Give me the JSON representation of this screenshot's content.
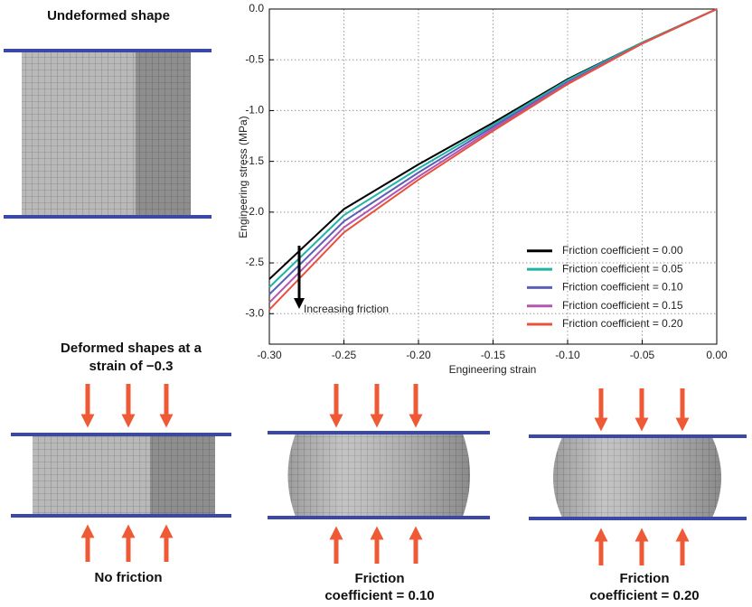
{
  "chart_data": {
    "type": "line",
    "x_label": "Engineering strain",
    "y_label": "Engineering stress (MPa)",
    "x": [
      -0.3,
      -0.25,
      -0.2,
      -0.15,
      -0.1,
      -0.05,
      0.0
    ],
    "series": [
      {
        "name": "Friction coefficient = 0.00",
        "color": "#000000",
        "values": [
          -2.66,
          -1.97,
          -1.53,
          -1.12,
          -0.69,
          -0.33,
          0.0
        ]
      },
      {
        "name": "Friction coefficient = 0.05",
        "color": "#1fb3a3",
        "values": [
          -2.74,
          -2.03,
          -1.57,
          -1.14,
          -0.7,
          -0.33,
          0.0
        ]
      },
      {
        "name": "Friction coefficient = 0.10",
        "color": "#5b5fb8",
        "values": [
          -2.81,
          -2.09,
          -1.61,
          -1.16,
          -0.72,
          -0.34,
          0.0
        ]
      },
      {
        "name": "Friction coefficient = 0.15",
        "color": "#b455b0",
        "values": [
          -2.89,
          -2.15,
          -1.65,
          -1.18,
          -0.73,
          -0.34,
          0.0
        ]
      },
      {
        "name": "Friction coefficient = 0.20",
        "color": "#e8513c",
        "values": [
          -2.96,
          -2.2,
          -1.68,
          -1.2,
          -0.74,
          -0.34,
          0.0
        ]
      }
    ],
    "xlim": [
      -0.3,
      0.0
    ],
    "ylim": [
      -3.3,
      0.0
    ],
    "xticks": [
      {
        "value": -0.3,
        "label": "-0.30"
      },
      {
        "value": -0.25,
        "label": "-0.25"
      },
      {
        "value": -0.2,
        "label": "-0.20"
      },
      {
        "value": -0.15,
        "label": "-0.15"
      },
      {
        "value": -0.1,
        "label": "-0.10"
      },
      {
        "value": -0.05,
        "label": "-0.05"
      },
      {
        "value": 0.0,
        "label": "0.00"
      }
    ],
    "yticks": [
      {
        "value": 0.0,
        "label": "0.0"
      },
      -0.5,
      {
        "value": -1.0,
        "label": "-1.0"
      },
      -1.5,
      {
        "value": -2.0,
        "label": "-2.0"
      },
      -2.5,
      {
        "value": -3.0,
        "label": "-3.0"
      }
    ],
    "grid": true,
    "legend": "lower right",
    "annotation": "Increasing friction"
  },
  "figure_text": {
    "undeformed_title": "Undeformed shape",
    "deformed_title": [
      "Deformed shapes at a",
      "strain of −0.3"
    ],
    "panels": [
      [
        "No friction"
      ],
      [
        "Friction",
        "coefficient = 0.10"
      ],
      [
        "Friction",
        "coefficient = 0.20"
      ]
    ]
  }
}
